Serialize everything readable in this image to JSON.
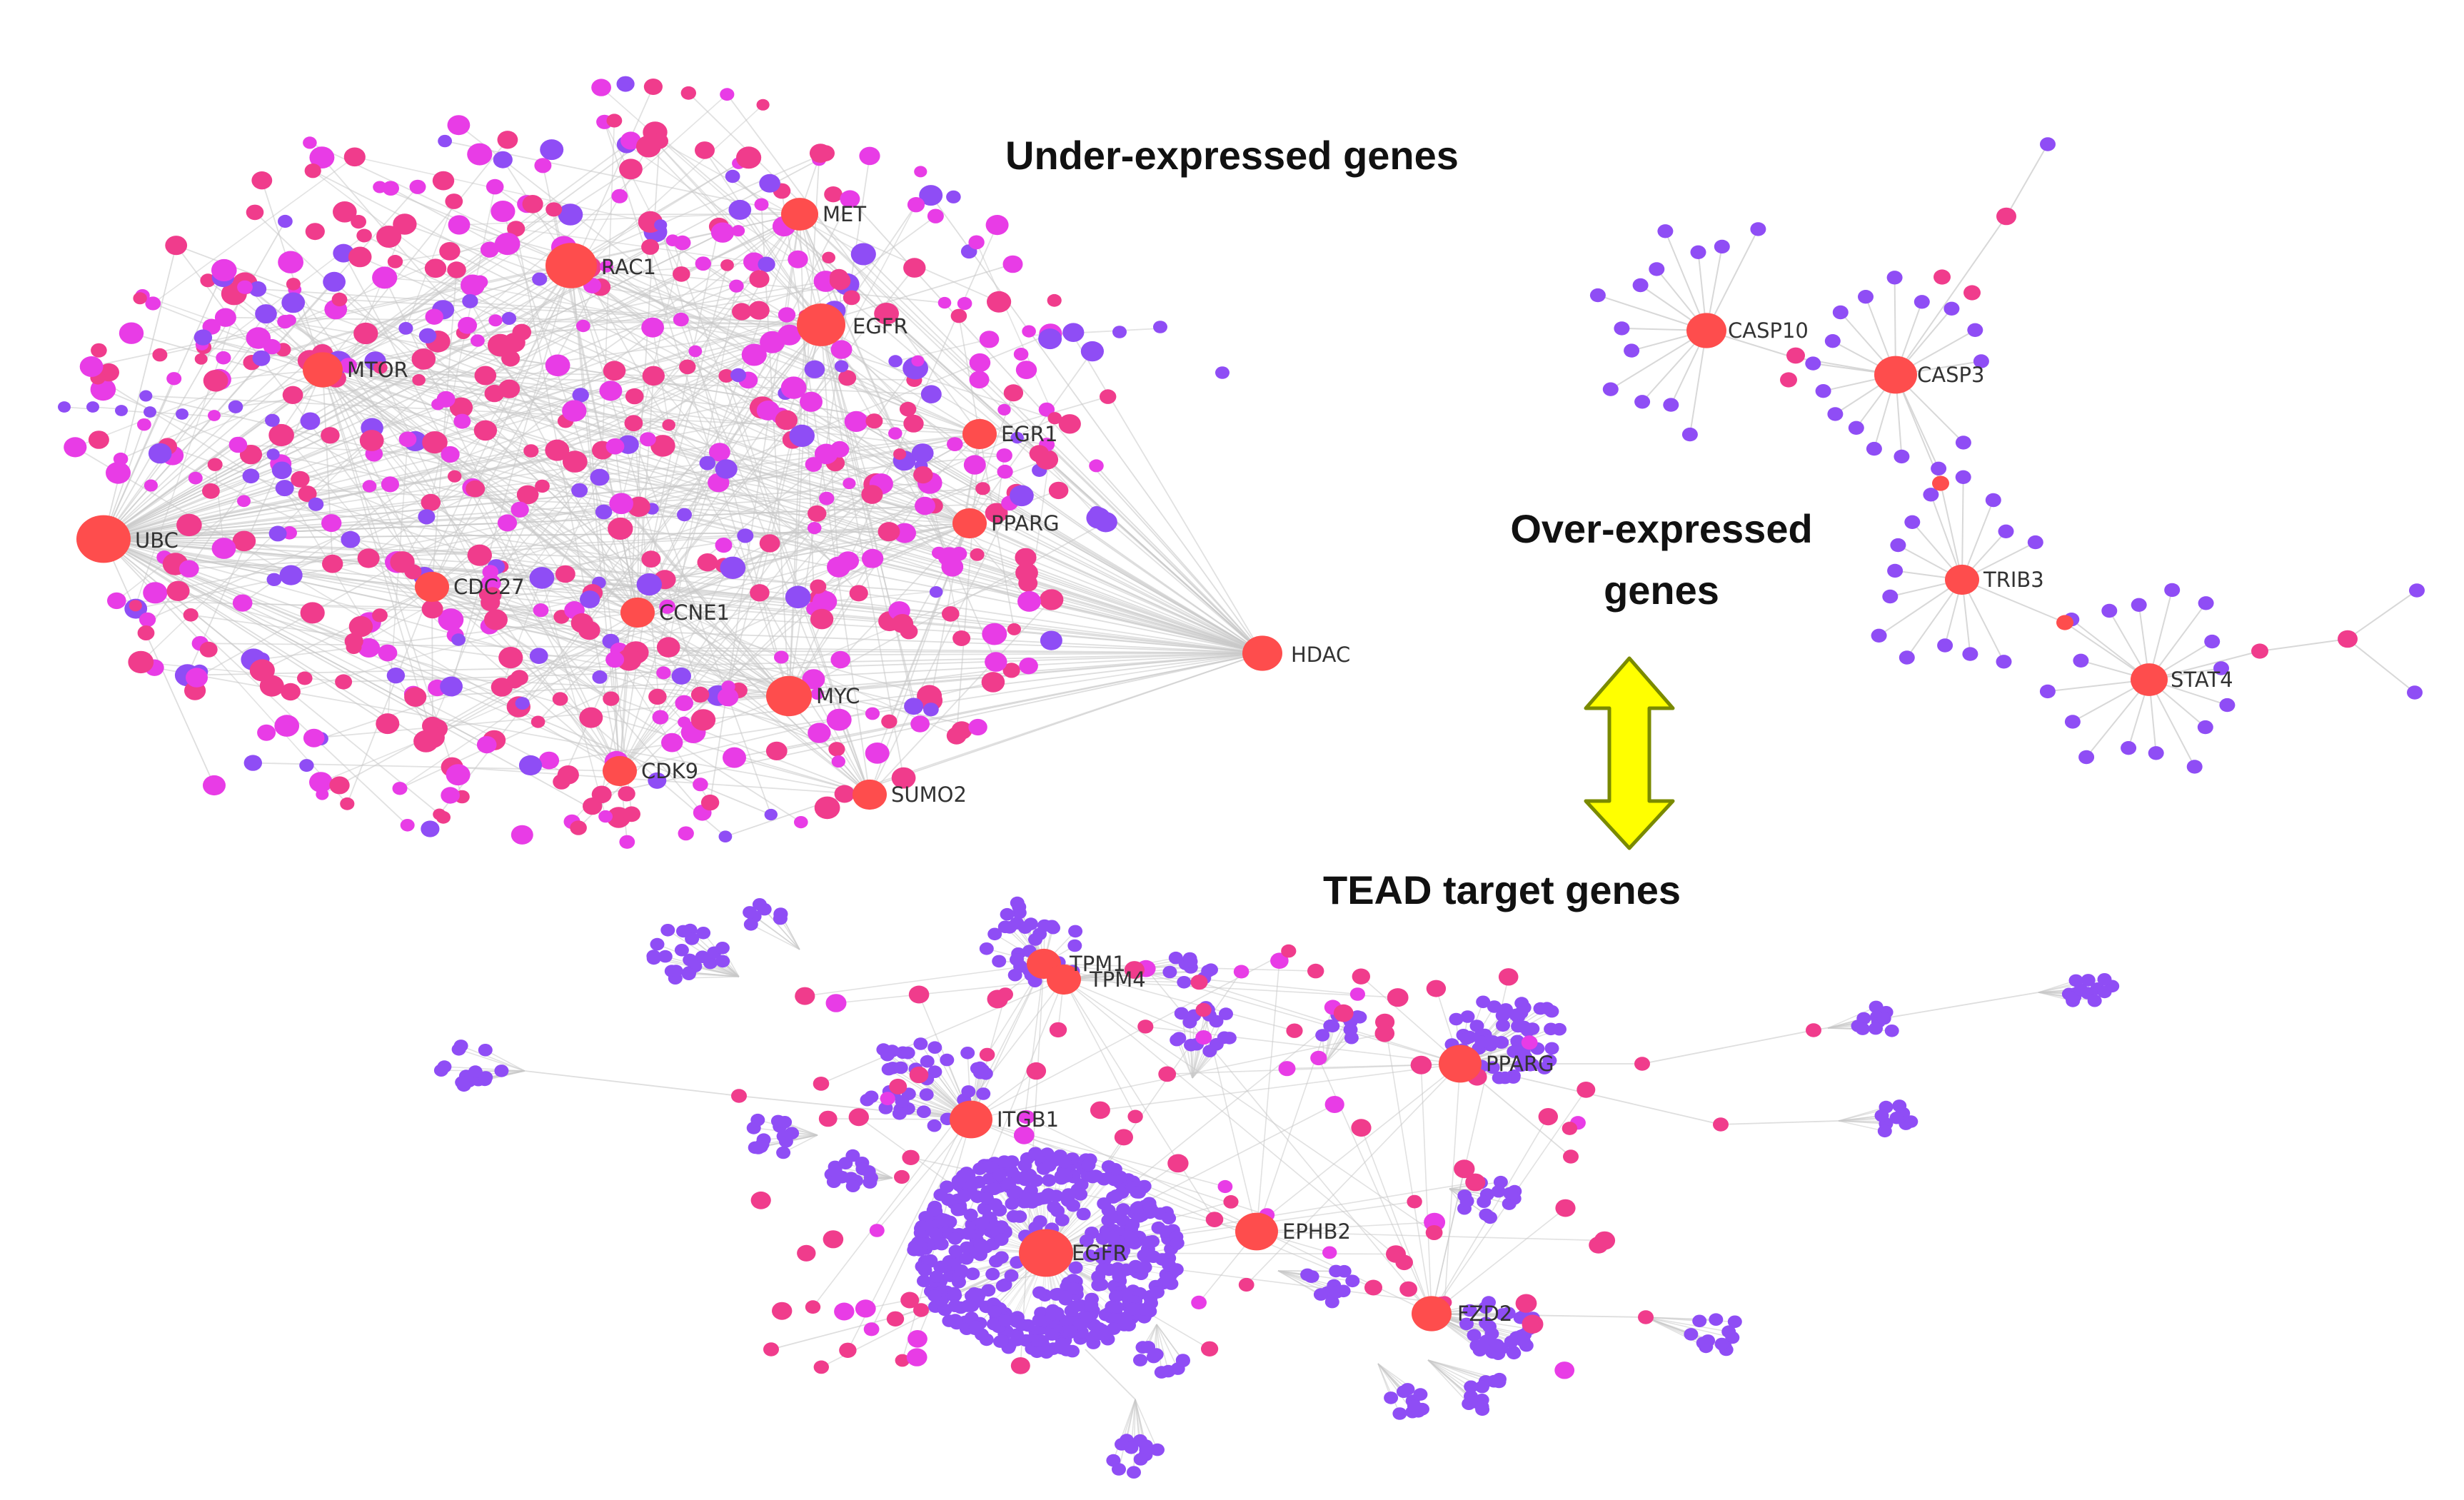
{
  "titles": {
    "under_expressed": "Under-expressed genes",
    "over_expressed_line1": "Over-expressed",
    "over_expressed_line2": "genes",
    "tead_targets": "TEAD target genes"
  },
  "colors": {
    "hub": "#fe4d4d",
    "pink": "#f03c8c",
    "magenta": "#e83ce6",
    "purple": "#8f4df5",
    "edge": "#c8c8c8",
    "arrow_fill": "#ffff00",
    "arrow_stroke": "#7a8a00"
  },
  "networks": {
    "under_expressed": {
      "hubs": [
        "RAC1",
        "MET",
        "EGFR",
        "MTOR",
        "EGR1",
        "UBC",
        "PPARG",
        "CDC27",
        "CCNE1",
        "HDAC",
        "MYC",
        "CDK9",
        "SUMO2"
      ]
    },
    "over_expressed": {
      "hubs": [
        "CASP10",
        "CASP3",
        "TRIB3",
        "STAT4"
      ]
    },
    "tead_targets": {
      "hubs": [
        "TPM1",
        "TPM4",
        "PPARG",
        "ITGB1",
        "EPHB2",
        "EGFR",
        "FZD2"
      ]
    }
  }
}
